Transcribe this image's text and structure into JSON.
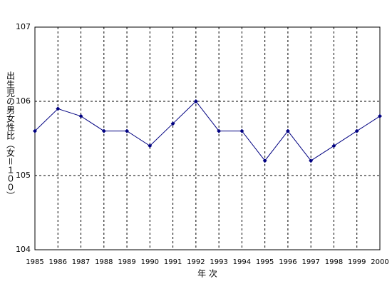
{
  "chart_data": {
    "type": "line",
    "y_label": "出生児の男女性比（女＝１００）",
    "x_label": "年 次",
    "x": [
      1985,
      1986,
      1987,
      1988,
      1989,
      1990,
      1991,
      1992,
      1993,
      1994,
      1995,
      1996,
      1997,
      1998,
      1999,
      2000
    ],
    "values": [
      105.6,
      105.9,
      105.8,
      105.6,
      105.6,
      105.4,
      105.7,
      106.0,
      105.6,
      105.6,
      105.2,
      105.6,
      105.2,
      105.4,
      105.6,
      105.8
    ],
    "color": "#000080",
    "xlim": [
      1985,
      2000
    ],
    "xticks": [
      1985,
      1986,
      1987,
      1988,
      1989,
      1990,
      1991,
      1992,
      1993,
      1994,
      1995,
      1996,
      1997,
      1998,
      1999,
      2000
    ],
    "ylim": [
      104,
      107
    ],
    "yticks": [
      104,
      105,
      106,
      107
    ],
    "grid": true
  }
}
